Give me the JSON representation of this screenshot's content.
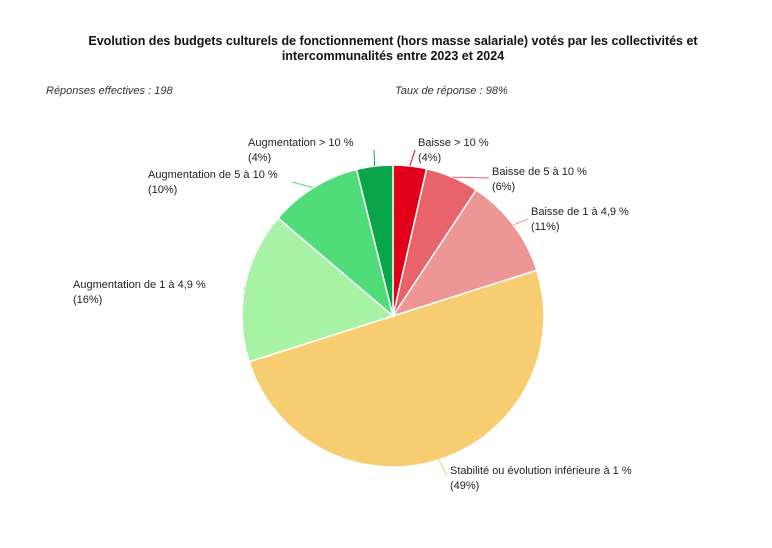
{
  "chart_data": {
    "type": "pie",
    "title_lines": [
      "Evolution des budgets culturels de fonctionnement (hors masse salariale) votés par les collectivités et",
      "intercommunalités entre 2023 et 2024"
    ],
    "notes": {
      "left": "Réponses effectives : 198",
      "right": "Taux de réponse : 98%"
    },
    "slices": [
      {
        "label": "Baisse > 10 %",
        "value_label": "(4%)",
        "value": 3.5,
        "color": "#e3001b"
      },
      {
        "label": "Baisse de 5 à 10 %",
        "value_label": "(6%)",
        "value": 5.6,
        "color": "#e8636a"
      },
      {
        "label": "Baisse de 1 à 4,9 %",
        "value_label": "(11%)",
        "value": 10.6,
        "color": "#ee9595"
      },
      {
        "label": "Stabilité ou évolution inférieure à 1 %",
        "value_label": "(49%)",
        "value": 49.0,
        "color": "#f7cd71"
      },
      {
        "label": "Augmentation de 1 à 4,9 %",
        "value_label": "(16%)",
        "value": 15.8,
        "color": "#a8f2a5"
      },
      {
        "label": "Augmentation de 5 à 10 %",
        "value_label": "(10%)",
        "value": 9.7,
        "color": "#4fdc79"
      },
      {
        "label": "Augmentation > 10 %",
        "value_label": "(4%)",
        "value": 3.8,
        "color": "#0aa548"
      }
    ]
  }
}
